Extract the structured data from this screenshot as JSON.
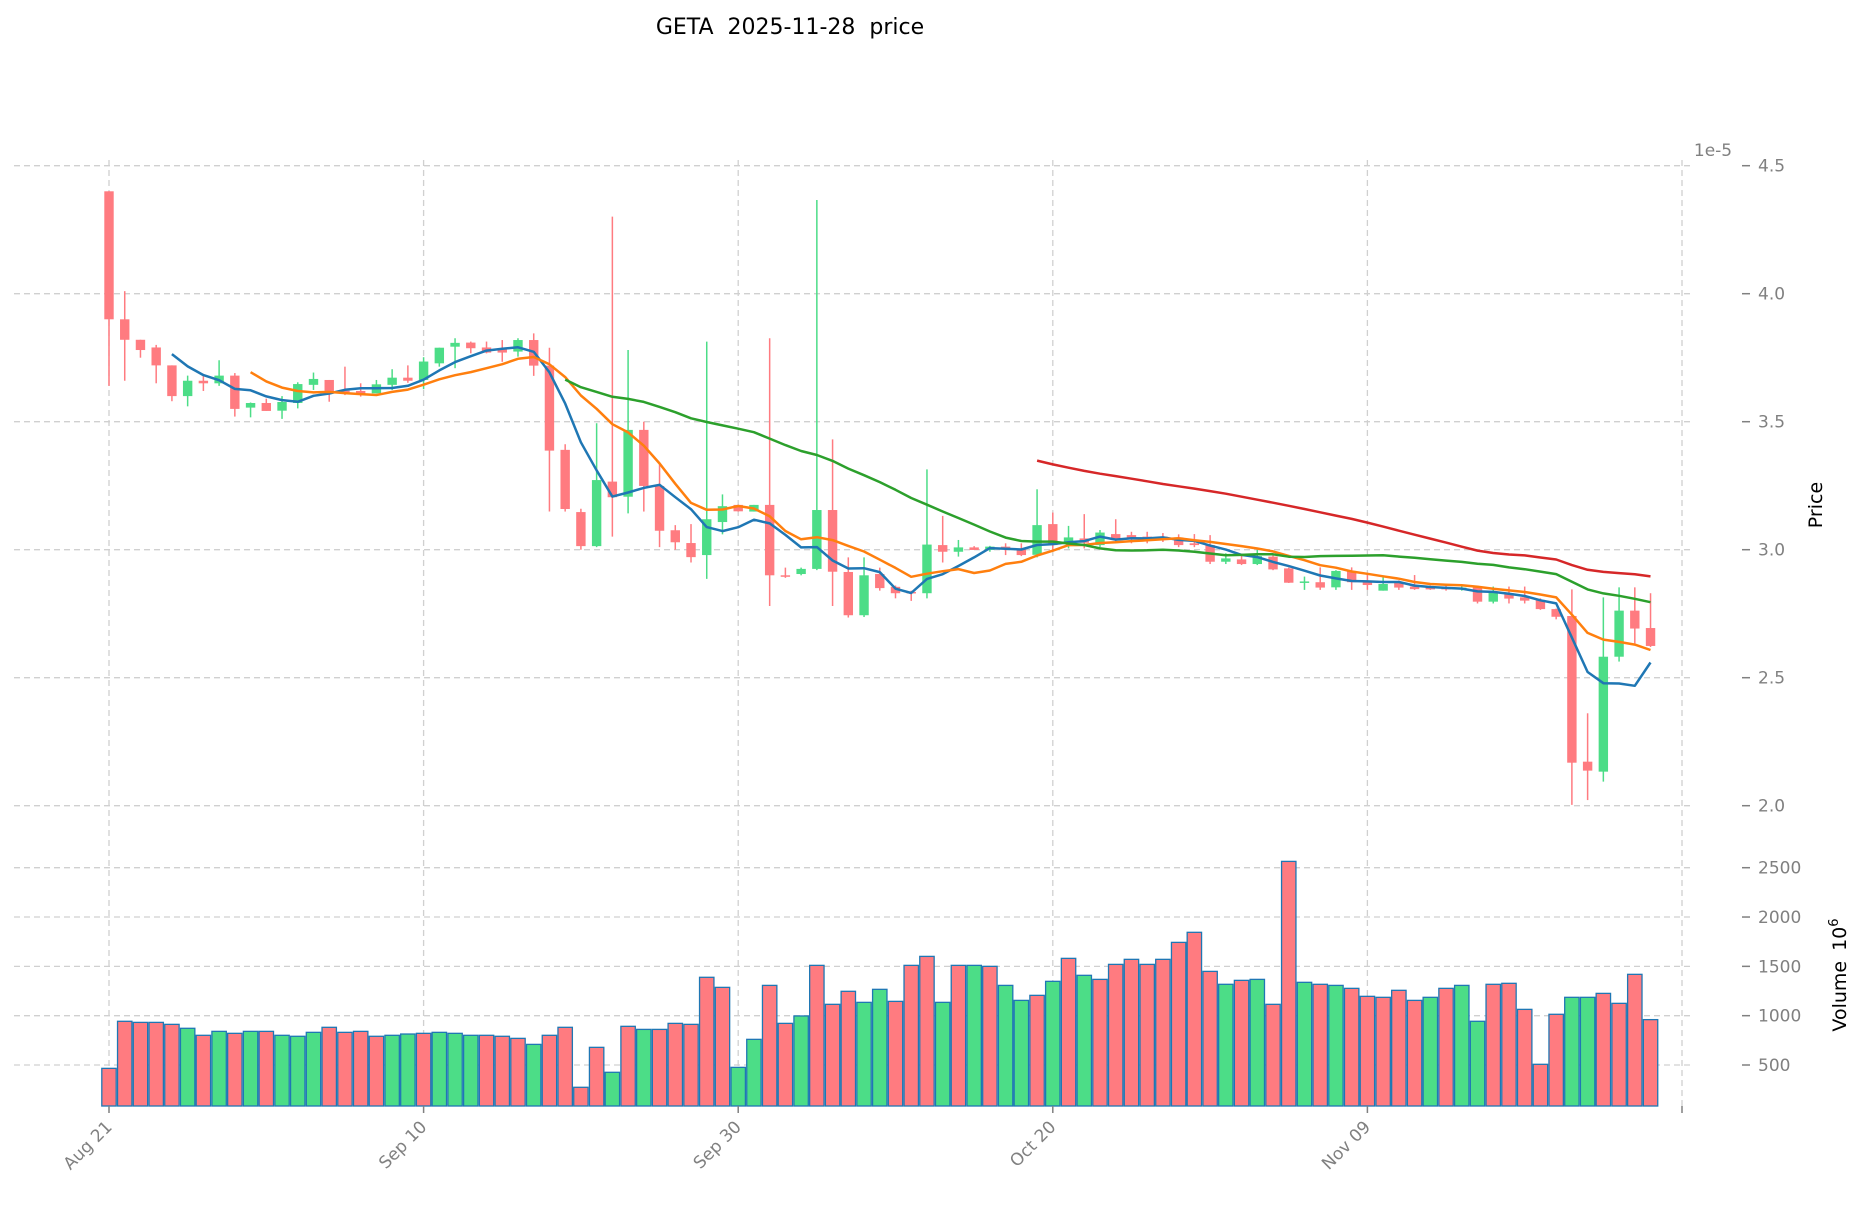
{
  "chart_data": {
    "type": "candlestick",
    "title": "GETA  2025-11-28  price",
    "price_axis": {
      "label": "Price",
      "multiplier_label": "1e-5",
      "ticks": [
        "2.0",
        "2.5",
        "3.0",
        "3.5",
        "4.0",
        "4.5"
      ],
      "ylim": [
        1.97,
        4.52
      ]
    },
    "volume_axis": {
      "label": "Volume",
      "unit_base": "10",
      "unit_exp": "6",
      "ticks": [
        "500",
        "1000",
        "1500",
        "2000",
        "2500"
      ],
      "ylim": [
        84,
        2640
      ]
    },
    "x_ticks": [
      {
        "index": 0,
        "label": "Aug 21"
      },
      {
        "index": 20,
        "label": "Sep 10"
      },
      {
        "index": 40,
        "label": "Sep 30"
      },
      {
        "index": 60,
        "label": "Oct 20"
      },
      {
        "index": 80,
        "label": "Nov 09"
      },
      {
        "index": 100,
        "label": ""
      }
    ],
    "start_date": "2025-08-21",
    "frequency": "1D",
    "ohlc": [
      [
        4.4,
        4.4,
        3.64,
        3.9
      ],
      [
        3.9,
        4.01,
        3.66,
        3.82
      ],
      [
        3.82,
        3.82,
        3.75,
        3.78
      ],
      [
        3.79,
        3.8,
        3.65,
        3.72
      ],
      [
        3.72,
        3.72,
        3.58,
        3.6
      ],
      [
        3.6,
        3.68,
        3.56,
        3.66
      ],
      [
        3.66,
        3.68,
        3.62,
        3.65
      ],
      [
        3.65,
        3.74,
        3.64,
        3.68
      ],
      [
        3.68,
        3.69,
        3.52,
        3.55
      ],
      [
        3.555,
        3.575,
        3.517,
        3.573
      ],
      [
        3.573,
        3.59,
        3.542,
        3.542
      ],
      [
        3.543,
        3.6,
        3.511,
        3.577
      ],
      [
        3.573,
        3.654,
        3.552,
        3.647
      ],
      [
        3.644,
        3.692,
        3.624,
        3.667
      ],
      [
        3.663,
        3.663,
        3.578,
        3.617
      ],
      [
        3.621,
        3.715,
        3.604,
        3.616
      ],
      [
        3.62,
        3.65,
        3.598,
        3.608
      ],
      [
        3.611,
        3.663,
        3.611,
        3.646
      ],
      [
        3.644,
        3.705,
        3.624,
        3.672
      ],
      [
        3.672,
        3.72,
        3.652,
        3.66
      ],
      [
        3.663,
        3.752,
        3.627,
        3.735
      ],
      [
        3.728,
        3.789,
        3.715,
        3.789
      ],
      [
        3.793,
        3.826,
        3.709,
        3.808
      ],
      [
        3.809,
        3.813,
        3.767,
        3.787
      ],
      [
        3.79,
        3.813,
        3.767,
        3.77
      ],
      [
        3.783,
        3.819,
        3.734,
        3.77
      ],
      [
        3.774,
        3.826,
        3.754,
        3.819
      ],
      [
        3.819,
        3.845,
        3.679,
        3.719
      ],
      [
        3.719,
        3.789,
        3.149,
        3.387
      ],
      [
        3.39,
        3.412,
        3.149,
        3.159
      ],
      [
        3.147,
        3.16,
        3.0,
        3.014
      ],
      [
        3.014,
        3.494,
        3.01,
        3.272
      ],
      [
        3.266,
        4.301,
        3.051,
        3.205
      ],
      [
        3.207,
        3.78,
        3.142,
        3.468
      ],
      [
        3.468,
        3.5,
        3.149,
        3.249
      ],
      [
        3.249,
        3.337,
        3.01,
        3.074
      ],
      [
        3.076,
        3.096,
        3.0,
        3.029
      ],
      [
        3.026,
        3.1,
        2.95,
        2.971
      ],
      [
        2.979,
        3.813,
        2.886,
        3.119
      ],
      [
        3.108,
        3.216,
        3.06,
        3.17
      ],
      [
        3.175,
        3.175,
        3.149,
        3.15
      ],
      [
        3.149,
        3.175,
        3.149,
        3.175
      ],
      [
        3.175,
        3.826,
        2.78,
        2.9
      ],
      [
        2.9,
        2.93,
        2.89,
        2.895
      ],
      [
        2.905,
        2.93,
        2.9,
        2.925
      ],
      [
        2.925,
        4.366,
        2.92,
        3.155
      ],
      [
        3.155,
        3.431,
        2.78,
        2.914
      ],
      [
        2.913,
        2.97,
        2.735,
        2.744
      ],
      [
        2.744,
        2.97,
        2.737,
        2.9
      ],
      [
        2.905,
        2.93,
        2.84,
        2.85
      ],
      [
        2.855,
        2.86,
        2.81,
        2.83
      ],
      [
        2.835,
        2.84,
        2.8,
        2.83
      ],
      [
        2.83,
        3.314,
        2.81,
        3.02
      ],
      [
        3.018,
        3.132,
        2.95,
        2.992
      ],
      [
        2.992,
        3.038,
        2.973,
        3.009
      ],
      [
        3.009,
        3.014,
        3.0,
        2.999
      ],
      [
        2.999,
        3.015,
        2.992,
        3.012
      ],
      [
        3.012,
        3.025,
        2.979,
        3.005
      ],
      [
        3.005,
        3.025,
        2.975,
        2.979
      ],
      [
        2.98,
        3.236,
        2.97,
        3.096
      ],
      [
        3.1,
        3.145,
        3.0,
        3.018
      ],
      [
        3.027,
        3.093,
        3.005,
        3.048
      ],
      [
        3.044,
        3.139,
        3.005,
        3.027
      ],
      [
        3.018,
        3.077,
        3.01,
        3.067
      ],
      [
        3.061,
        3.119,
        3.025,
        3.038
      ],
      [
        3.057,
        3.07,
        3.025,
        3.044
      ],
      [
        3.051,
        3.07,
        3.025,
        3.044
      ],
      [
        3.051,
        3.065,
        3.03,
        3.047
      ],
      [
        3.048,
        3.06,
        3.01,
        3.018
      ],
      [
        3.025,
        3.061,
        3.01,
        3.018
      ],
      [
        3.018,
        3.057,
        2.944,
        2.953
      ],
      [
        2.953,
        2.986,
        2.944,
        2.966
      ],
      [
        2.962,
        2.98,
        2.94,
        2.944
      ],
      [
        2.944,
        3.0,
        2.94,
        2.975
      ],
      [
        2.973,
        2.979,
        2.92,
        2.923
      ],
      [
        2.927,
        2.93,
        2.87,
        2.871
      ],
      [
        2.872,
        2.895,
        2.843,
        2.876
      ],
      [
        2.873,
        2.931,
        2.843,
        2.852
      ],
      [
        2.853,
        2.92,
        2.843,
        2.917
      ],
      [
        2.917,
        2.931,
        2.843,
        2.873
      ],
      [
        2.875,
        2.905,
        2.843,
        2.862
      ],
      [
        2.84,
        2.897,
        2.84,
        2.866
      ],
      [
        2.871,
        2.88,
        2.843,
        2.852
      ],
      [
        2.856,
        2.901,
        2.843,
        2.846
      ],
      [
        2.856,
        2.86,
        2.843,
        2.845
      ],
      [
        2.852,
        2.86,
        2.84,
        2.845
      ],
      [
        2.849,
        2.86,
        2.84,
        2.852
      ],
      [
        2.856,
        2.86,
        2.79,
        2.797
      ],
      [
        2.797,
        2.856,
        2.79,
        2.836
      ],
      [
        2.83,
        2.856,
        2.79,
        2.809
      ],
      [
        2.814,
        2.856,
        2.79,
        2.801
      ],
      [
        2.804,
        2.81,
        2.765,
        2.768
      ],
      [
        2.768,
        2.77,
        2.728,
        2.738
      ],
      [
        2.741,
        2.845,
        2.003,
        2.168
      ],
      [
        2.172,
        2.361,
        2.022,
        2.137
      ],
      [
        2.133,
        2.814,
        2.094,
        2.582
      ],
      [
        2.582,
        2.853,
        2.563,
        2.762
      ],
      [
        2.762,
        2.853,
        2.634,
        2.692
      ],
      [
        2.694,
        2.83,
        2.62,
        2.624
      ]
    ],
    "volume": [
      466,
      943,
      932,
      932,
      912,
      872,
      801,
      841,
      821,
      841,
      841,
      801,
      791,
      831,
      882,
      831,
      841,
      791,
      801,
      814,
      821,
      831,
      821,
      801,
      801,
      791,
      770,
      709,
      801,
      882,
      274,
      679,
      426,
      892,
      861,
      861,
      922,
      912,
      1389,
      1287,
      476,
      760,
      1307,
      922,
      997,
      1510,
      1115,
      1247,
      1135,
      1267,
      1145,
      1510,
      1601,
      1135,
      1510,
      1510,
      1500,
      1307,
      1155,
      1206,
      1348,
      1581,
      1409,
      1368,
      1520,
      1571,
      1520,
      1571,
      1743,
      1845,
      1449,
      1318,
      1358,
      1368,
      1115,
      2564,
      1338,
      1318,
      1307,
      1277,
      1196,
      1186,
      1257,
      1155,
      1186,
      1277,
      1307,
      943,
      1318,
      1328,
      1064,
      507,
      1014,
      1186,
      1186,
      1226,
      1125,
      1419,
      960
    ],
    "volume_direction": "dddddudududuuudddduuduuuddduddddududdddduudduddduudddududuudududdddddddududdudud dddduduuddddduudd",
    "moving_averages": [
      {
        "window": 5,
        "color": "#1f77b4"
      },
      {
        "window": 10,
        "color": "#ff7f0e"
      },
      {
        "window": 30,
        "color": "#2ca02c"
      },
      {
        "window": 60,
        "color": "#d62728"
      }
    ],
    "colors": {
      "up": "#4cdd87",
      "down": "#ff7b80",
      "volume_edge": "#1f77b4"
    },
    "grid": true
  }
}
